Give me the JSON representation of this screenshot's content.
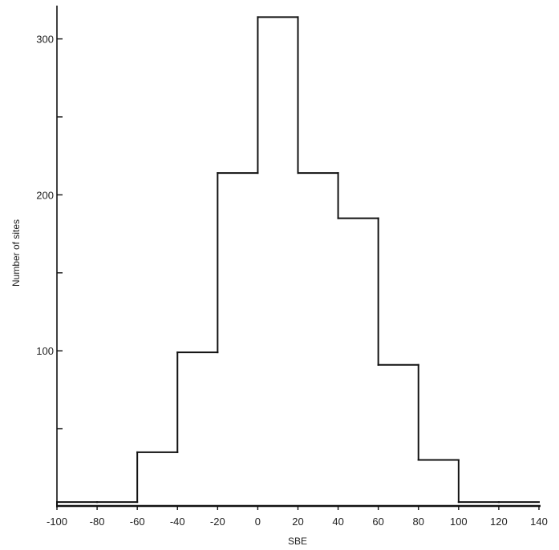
{
  "chart_data": {
    "type": "bar",
    "subtype": "histogram-step",
    "title": "",
    "xlabel": "SBE",
    "ylabel": "Number of sites",
    "bin_edges": [
      -100,
      -80,
      -60,
      -40,
      -20,
      0,
      20,
      40,
      60,
      80,
      100,
      120,
      140
    ],
    "values": [
      3,
      3,
      35,
      99,
      214,
      314,
      214,
      185,
      91,
      30,
      3,
      3
    ],
    "xlim": [
      -100,
      140
    ],
    "ylim": [
      0,
      330
    ],
    "x_ticks": [
      -100,
      -80,
      -60,
      -40,
      -20,
      0,
      20,
      40,
      60,
      80,
      100,
      120,
      140
    ],
    "y_ticks_labeled": [
      100,
      200,
      300
    ],
    "y_ticks_minor": [
      50,
      150,
      250
    ],
    "grid": false,
    "legend": "none"
  },
  "colors": {
    "line": "#111111",
    "axis": "#111111",
    "text": "#222222",
    "background": "#ffffff"
  }
}
